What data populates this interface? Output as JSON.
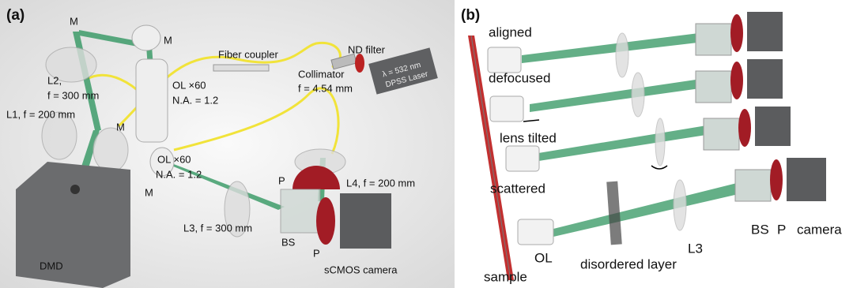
{
  "panel_a": {
    "label": "(a)",
    "labels": [
      "M",
      "M",
      "L2,",
      "f = 300 mm",
      "L1, f = 200 mm",
      "M",
      "OL  ×60",
      "N.A. = 1.2",
      "Fiber coupler",
      "ND filter",
      "Collimator",
      "f = 4.54 mm",
      "λ = 532 nm",
      "DPSS Laser",
      "OL  ×60",
      "N.A. = 1.2",
      "M",
      "P",
      "L4, f = 200 mm",
      "L3, f = 300 mm",
      "BS",
      "P",
      "sCMOS camera",
      "DMD"
    ]
  },
  "panel_b": {
    "label": "(b)",
    "labels": [
      "aligned",
      "defocused",
      "lens tilted",
      "scattered",
      "OL",
      "disordered layer",
      "L3",
      "BS",
      "P",
      "camera",
      "sample"
    ]
  }
}
